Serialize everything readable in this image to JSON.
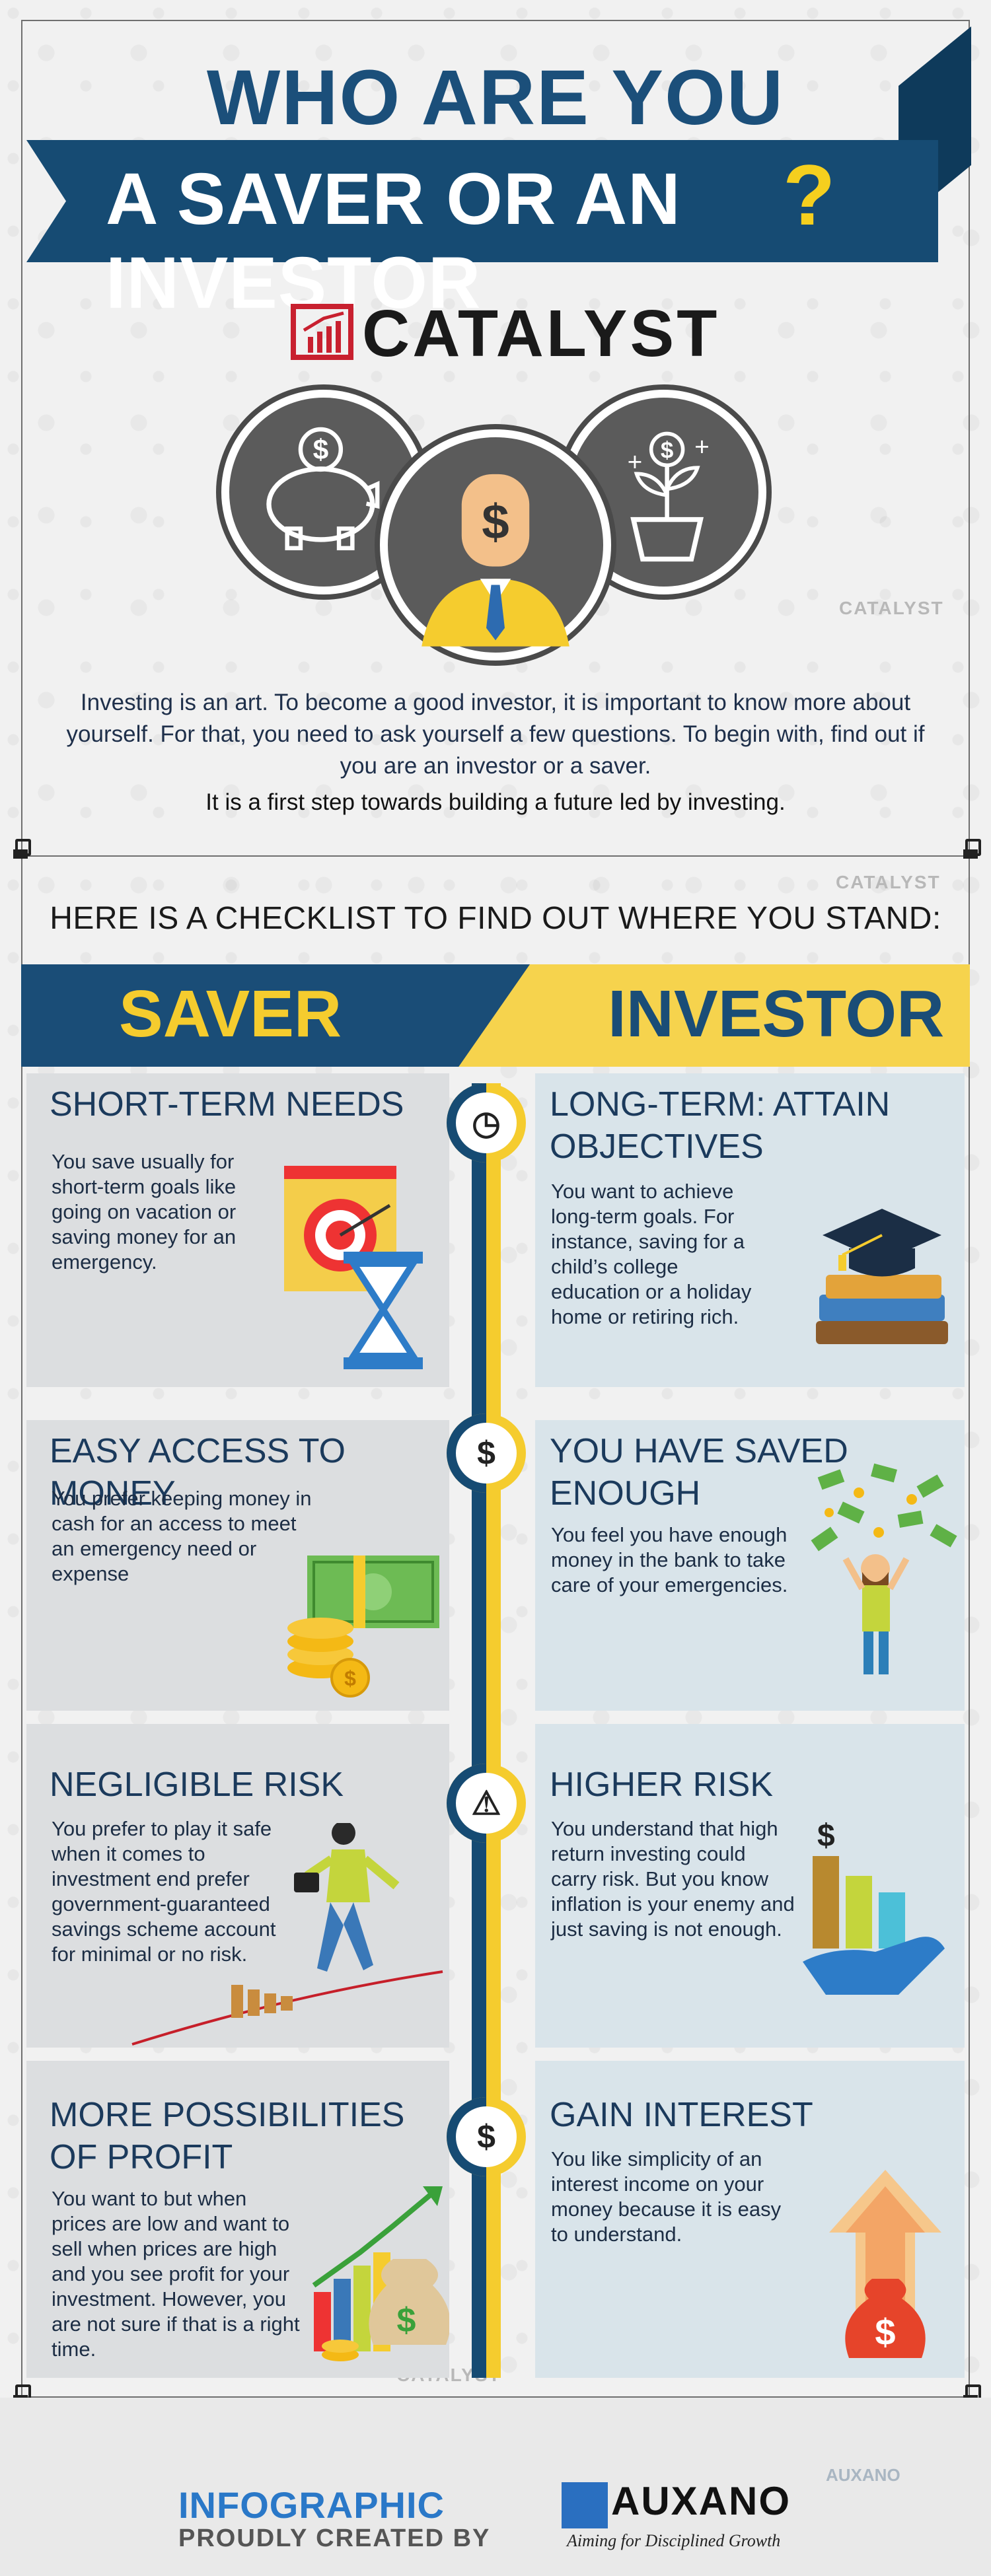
{
  "title": {
    "line1": "WHO ARE YOU",
    "line2": "A SAVER OR AN INVESTOR",
    "qmark": "?"
  },
  "brand": {
    "name": "CATALYST"
  },
  "watermarks": {
    "catalyst": "CATALYST",
    "auxano": "AUXANO"
  },
  "intro": {
    "paragraph": "Investing is an art. To become a good investor, it is important to know more about yourself. For that, you need to ask yourself a few questions. To begin with, find out if you are an investor or a saver.",
    "tagline": "It is a first step towards building a future led by investing."
  },
  "checklist_heading": "HERE IS A CHECKLIST TO FIND OUT WHERE YOU STAND:",
  "headers": {
    "saver": "SAVER",
    "investor": "INVESTOR"
  },
  "rows": [
    {
      "icon": "clock-icon",
      "node_glyph": "◷",
      "saver": {
        "title": "SHORT-TERM NEEDS",
        "text": "You save usually for short-term goals like going on vacation or saving money for an emergency."
      },
      "investor": {
        "title": "LONG-TERM: ATTAIN OBJECTIVES",
        "text": "You want to achieve long-term goals. For instance, saving for a child’s college education or a holiday home or retiring rich."
      }
    },
    {
      "icon": "dollar-icon",
      "node_glyph": "$",
      "saver": {
        "title": "EASY ACCESS TO MONEY",
        "text": "You prefer keeping money in cash for an access to meet an emergency need or expense"
      },
      "investor": {
        "title": "YOU HAVE SAVED ENOUGH",
        "text": "You feel you have enough money in the bank to take care of your emergencies."
      }
    },
    {
      "icon": "warning-icon",
      "node_glyph": "⚠",
      "saver": {
        "title": "NEGLIGIBLE RISK",
        "text": "You prefer to play it safe when it comes to investment end prefer government-guaranteed savings scheme account for minimal or no risk."
      },
      "investor": {
        "title": "HIGHER RISK",
        "text": "You understand that high return investing could carry risk. But you know inflation is your enemy and just saving is not enough."
      }
    },
    {
      "icon": "dollar-arrows-icon",
      "node_glyph": "$",
      "saver": {
        "title": "MORE POSSIBILITIES OF PROFIT",
        "text": "You want to but when prices are low and want to sell when prices are high and you see profit for your investment. However, you are not sure if that is a right time."
      },
      "investor": {
        "title": "GAIN INTEREST",
        "text": "You  like simplicity of an interest income on your money because it is easy to understand."
      }
    }
  ],
  "footer": {
    "line1": "INFOGRAPHIC",
    "line2": "PROUDLY CREATED BY",
    "company": "AUXANO",
    "tagline": "Aiming for Disciplined Growth"
  },
  "colors": {
    "navy": "#164b73",
    "yellow": "#f5cc2e",
    "saver_card": "#dcdee0",
    "investor_card": "#d9e4ea"
  }
}
